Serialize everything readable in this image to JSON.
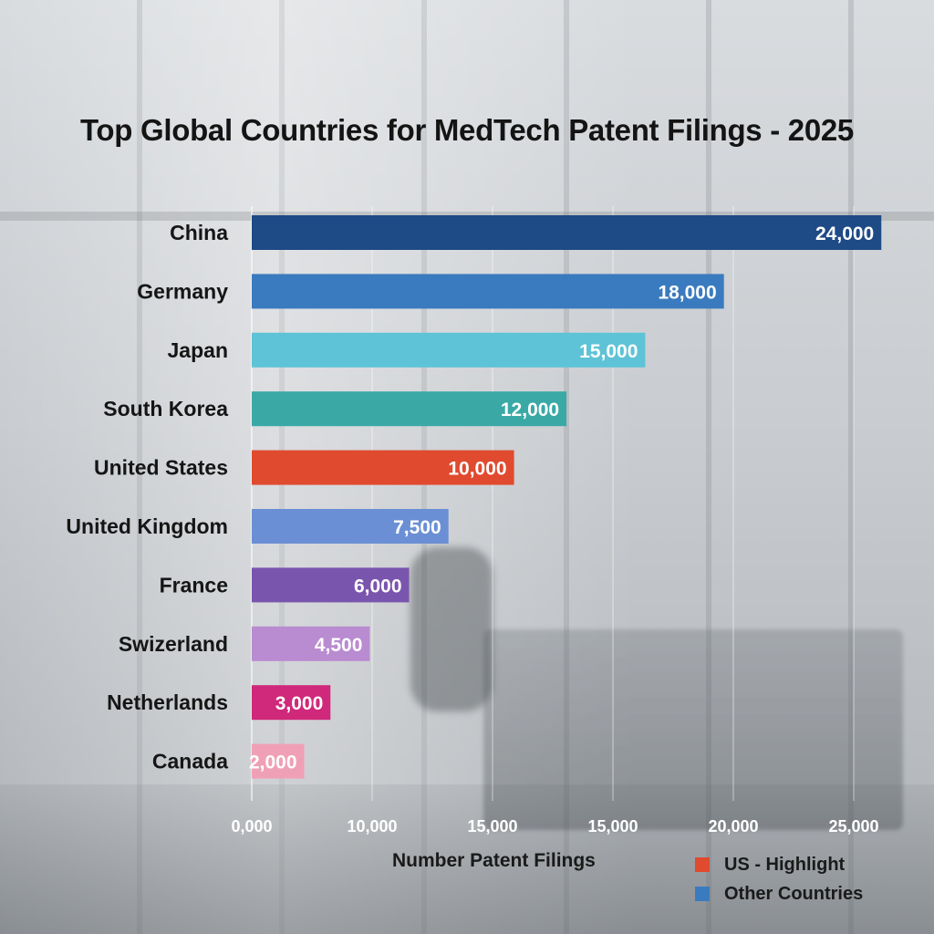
{
  "chart_data": {
    "type": "bar",
    "orientation": "horizontal",
    "title": "Top Global Countries for MedTech Patent Filings - 2025",
    "xlabel": "Number Patent Filings",
    "ylabel": "",
    "categories": [
      "China",
      "Germany",
      "Japan",
      "South Korea",
      "United States",
      "United Kingdom",
      "France",
      "Swizerland",
      "Netherlands",
      "Canada"
    ],
    "values": [
      24000,
      18000,
      15000,
      12000,
      10000,
      7500,
      6000,
      4500,
      3000,
      2000
    ],
    "value_labels": [
      "24,000",
      "18,000",
      "15,000",
      "12,000",
      "10,000",
      "7,500",
      "6,000",
      "4,500",
      "3,000",
      "2,000"
    ],
    "bar_colors": [
      "#1e4a86",
      "#3a7bbf",
      "#5ec3d6",
      "#3aa9a6",
      "#e04a2e",
      "#6b8fd4",
      "#7a55ad",
      "#b98bd1",
      "#d0287a",
      "#f0a0b6"
    ],
    "x_ticks": [
      "0,000",
      "10,000",
      "15,000",
      "15,000",
      "20,000",
      "25,000"
    ],
    "xlim": [
      0,
      25000
    ],
    "grid": true,
    "legend_position": "bottom-right"
  },
  "legend": [
    {
      "label": "US - Highlight",
      "color": "#e04a2e"
    },
    {
      "label": "Other Countries",
      "color": "#3a7bbf"
    }
  ]
}
